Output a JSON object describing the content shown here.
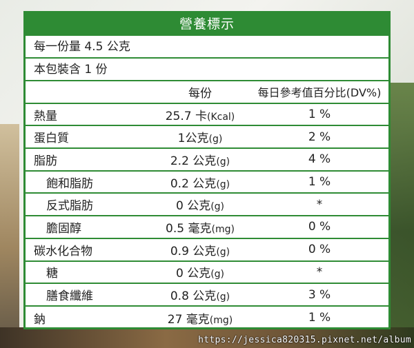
{
  "label": {
    "title": "營養標示",
    "serving_size": "每一份量 4.5 公克",
    "servings_per_package": "本包裝含 1 份",
    "columns": {
      "name": "",
      "per_serving": "每份",
      "daily_value": "每日參考值百分比(DV%)"
    },
    "rows": [
      {
        "name": "熱量",
        "amount": "25.7 卡",
        "unit": "(Kcal)",
        "dv": "1 %"
      },
      {
        "name": "蛋白質",
        "amount": "1公克",
        "unit": "(g)",
        "dv": "2 %"
      },
      {
        "name": "脂肪",
        "amount": "2.2 公克",
        "unit": "(g)",
        "dv": "4 %"
      },
      {
        "name": "飽和脂肪",
        "amount": "0.2 公克",
        "unit": "(g)",
        "dv": "1 %"
      },
      {
        "name": "反式脂肪",
        "amount": "0 公克",
        "unit": "(g)",
        "dv": "*"
      },
      {
        "name": "膽固醇",
        "amount": "0.5 毫克",
        "unit": "(mg)",
        "dv": "0 %"
      },
      {
        "name": "碳水化合物",
        "amount": "0.9 公克",
        "unit": "(g)",
        "dv": "0 %"
      },
      {
        "name": "糖",
        "amount": "0 公克",
        "unit": "(g)",
        "dv": "*"
      },
      {
        "name": "膳食纖維",
        "amount": "0.8 公克",
        "unit": "(g)",
        "dv": "3 %"
      },
      {
        "name": "鈉",
        "amount": "27 毫克",
        "unit": "(mg)",
        "dv": "1 %"
      }
    ]
  },
  "watermark": "https://jessica820315.pixnet.net/album",
  "colors": {
    "accent": "#2e8b34"
  }
}
